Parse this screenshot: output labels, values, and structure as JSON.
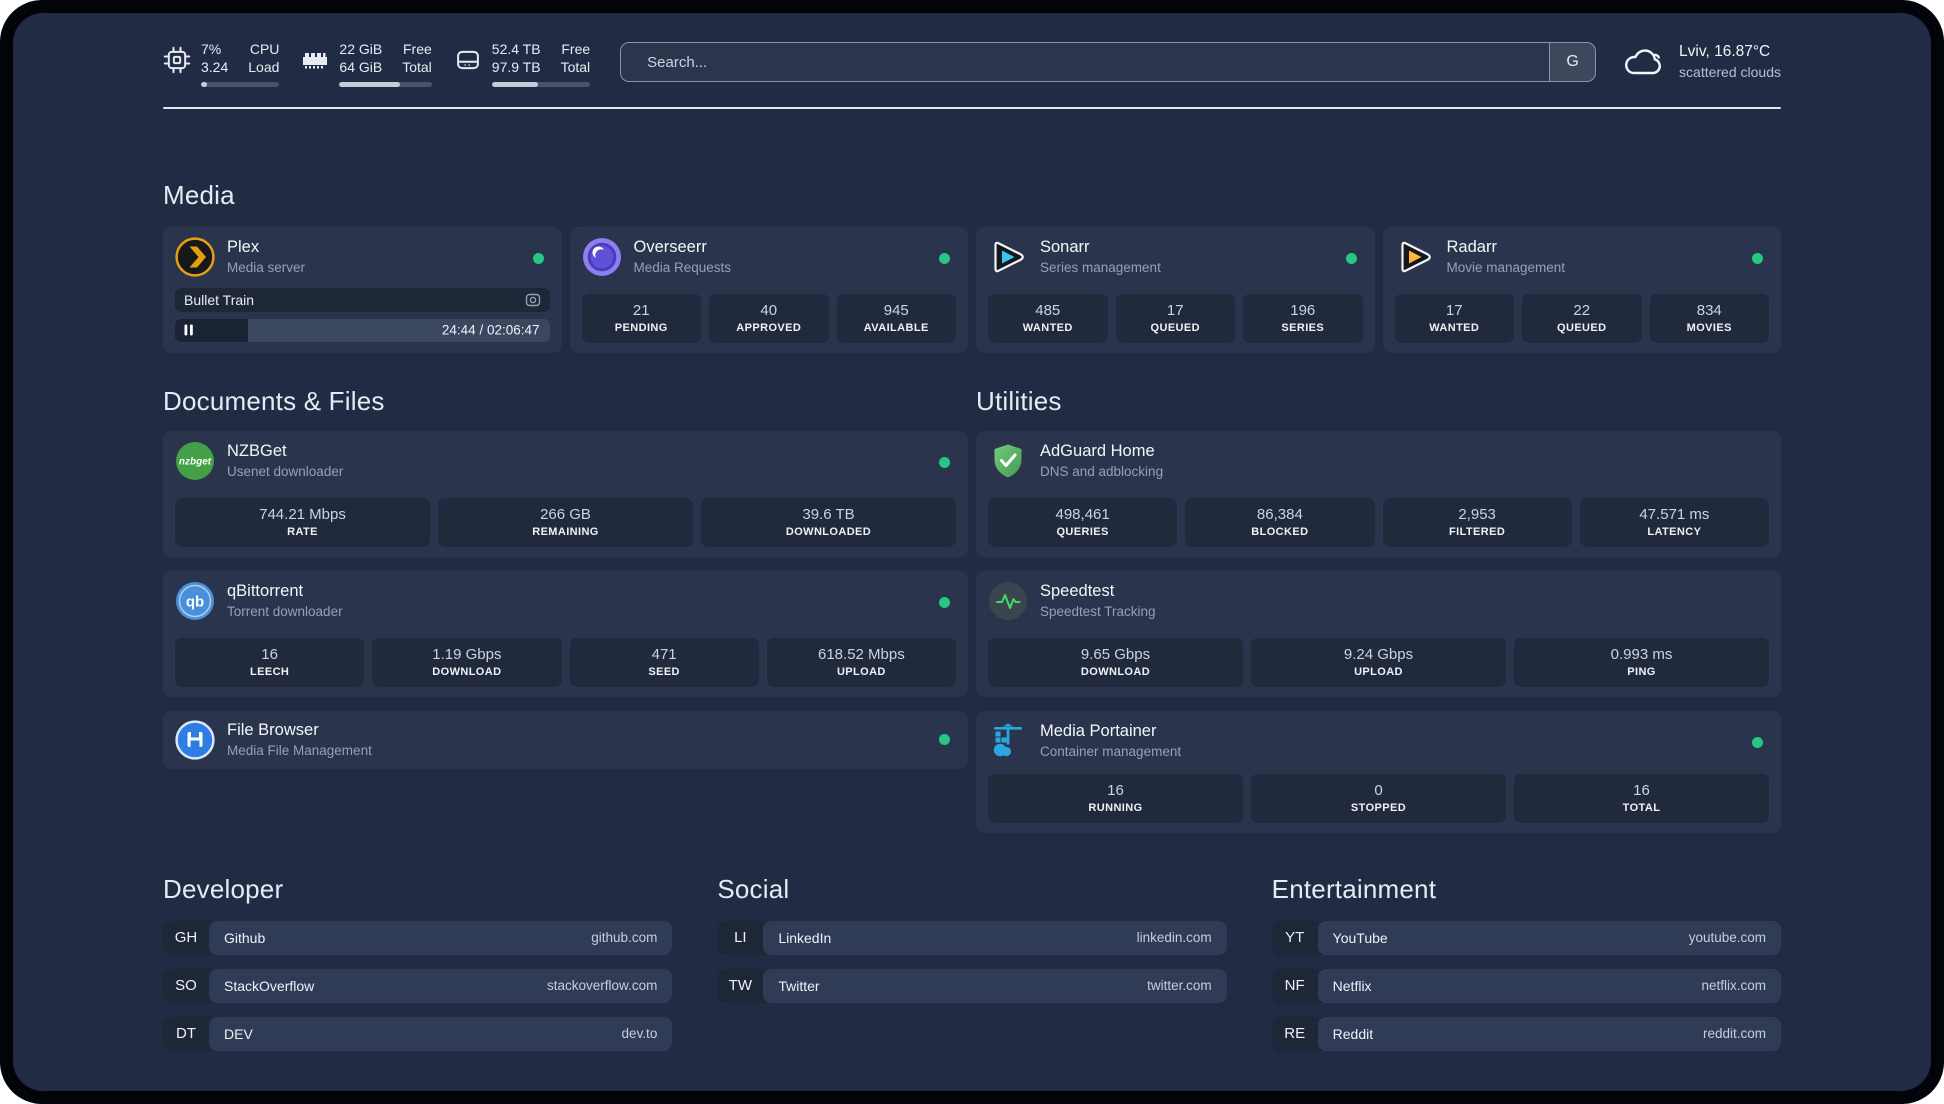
{
  "topbar": {
    "resources": [
      {
        "icon": "cpu-icon",
        "values": [
          "7%",
          "3.24"
        ],
        "labels": [
          "CPU",
          "Load"
        ],
        "percent": 8
      },
      {
        "icon": "memory-icon",
        "values": [
          "22 GiB",
          "64 GiB"
        ],
        "labels": [
          "Free",
          "Total"
        ],
        "percent": 66
      },
      {
        "icon": "disk-icon",
        "values": [
          "52.4 TB",
          "97.9 TB"
        ],
        "labels": [
          "Free",
          "Total"
        ],
        "percent": 47
      }
    ],
    "search": {
      "placeholder": "Search...",
      "provider_button": "G"
    },
    "weather": {
      "location": "Lviv, 16.87°C",
      "condition": "scattered clouds"
    }
  },
  "media": {
    "header": "Media",
    "plex": {
      "title": "Plex",
      "subtitle": "Media server",
      "status": "online",
      "now_playing": "Bullet Train",
      "time_display": "24:44 / 02:06:47",
      "progress_percent": 19.5
    },
    "overseerr": {
      "title": "Overseerr",
      "subtitle": "Media Requests",
      "status": "online",
      "stats": [
        {
          "value": "21",
          "label": "PENDING"
        },
        {
          "value": "40",
          "label": "APPROVED"
        },
        {
          "value": "945",
          "label": "AVAILABLE"
        }
      ]
    },
    "sonarr": {
      "title": "Sonarr",
      "subtitle": "Series management",
      "status": "online",
      "stats": [
        {
          "value": "485",
          "label": "WANTED"
        },
        {
          "value": "17",
          "label": "QUEUED"
        },
        {
          "value": "196",
          "label": "SERIES"
        }
      ]
    },
    "radarr": {
      "title": "Radarr",
      "subtitle": "Movie management",
      "status": "online",
      "stats": [
        {
          "value": "17",
          "label": "WANTED"
        },
        {
          "value": "22",
          "label": "QUEUED"
        },
        {
          "value": "834",
          "label": "MOVIES"
        }
      ]
    }
  },
  "documents": {
    "header": "Documents & Files",
    "nzbget": {
      "title": "NZBGet",
      "subtitle": "Usenet downloader",
      "status": "online",
      "stats": [
        {
          "value": "744.21 Mbps",
          "label": "RATE"
        },
        {
          "value": "266 GB",
          "label": "REMAINING"
        },
        {
          "value": "39.6 TB",
          "label": "DOWNLOADED"
        }
      ]
    },
    "qbittorrent": {
      "title": "qBittorrent",
      "subtitle": "Torrent downloader",
      "status": "online",
      "stats": [
        {
          "value": "16",
          "label": "LEECH"
        },
        {
          "value": "1.19 Gbps",
          "label": "DOWNLOAD"
        },
        {
          "value": "471",
          "label": "SEED"
        },
        {
          "value": "618.52 Mbps",
          "label": "UPLOAD"
        }
      ]
    },
    "filebrowser": {
      "title": "File Browser",
      "subtitle": "Media File Management",
      "status": "online"
    }
  },
  "utilities": {
    "header": "Utilities",
    "adguard": {
      "title": "AdGuard Home",
      "subtitle": "DNS and adblocking",
      "stats": [
        {
          "value": "498,461",
          "label": "QUERIES"
        },
        {
          "value": "86,384",
          "label": "BLOCKED"
        },
        {
          "value": "2,953",
          "label": "FILTERED"
        },
        {
          "value": "47.571 ms",
          "label": "LATENCY"
        }
      ]
    },
    "speedtest": {
      "title": "Speedtest",
      "subtitle": "Speedtest Tracking",
      "stats": [
        {
          "value": "9.65 Gbps",
          "label": "DOWNLOAD"
        },
        {
          "value": "9.24 Gbps",
          "label": "UPLOAD"
        },
        {
          "value": "0.993 ms",
          "label": "PING"
        }
      ]
    },
    "portainer": {
      "title": "Media Portainer",
      "subtitle": "Container management",
      "status": "online",
      "stats": [
        {
          "value": "16",
          "label": "RUNNING"
        },
        {
          "value": "0",
          "label": "STOPPED"
        },
        {
          "value": "16",
          "label": "TOTAL"
        }
      ]
    }
  },
  "bookmarks": {
    "developer": {
      "header": "Developer",
      "links": [
        {
          "abbr": "GH",
          "name": "Github",
          "url": "github.com"
        },
        {
          "abbr": "SO",
          "name": "StackOverflow",
          "url": "stackoverflow.com"
        },
        {
          "abbr": "DT",
          "name": "DEV",
          "url": "dev.to"
        }
      ]
    },
    "social": {
      "header": "Social",
      "links": [
        {
          "abbr": "LI",
          "name": "LinkedIn",
          "url": "linkedin.com"
        },
        {
          "abbr": "TW",
          "name": "Twitter",
          "url": "twitter.com"
        }
      ]
    },
    "entertainment": {
      "header": "Entertainment",
      "links": [
        {
          "abbr": "YT",
          "name": "YouTube",
          "url": "youtube.com"
        },
        {
          "abbr": "NF",
          "name": "Netflix",
          "url": "netflix.com"
        },
        {
          "abbr": "RE",
          "name": "Reddit",
          "url": "reddit.com"
        }
      ]
    }
  },
  "colors": {
    "status_online": "#27c783",
    "accent_plex": "#e5a00d"
  }
}
